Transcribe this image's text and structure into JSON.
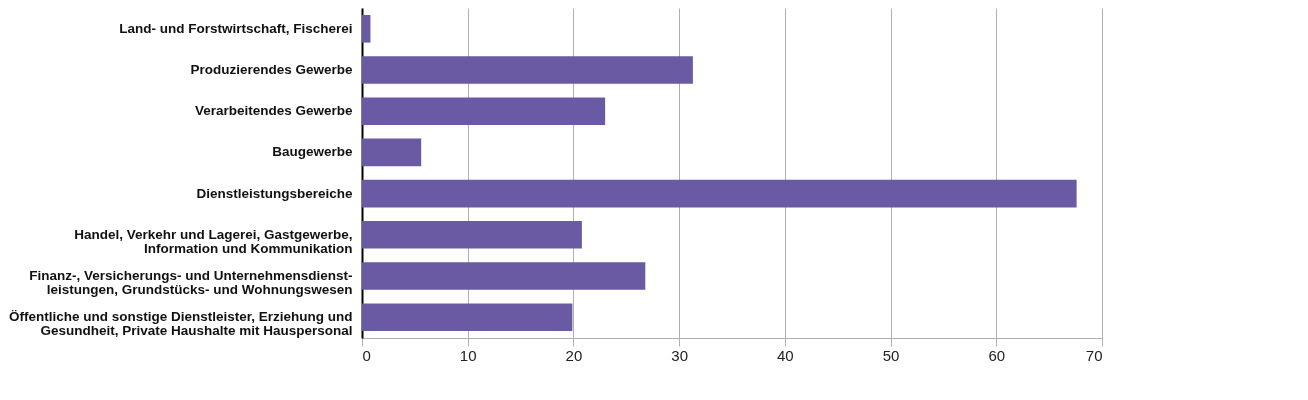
{
  "chart_data": {
    "type": "bar",
    "orientation": "horizontal",
    "categories": [
      "Land- und Forstwirtschaft, Fischerei",
      "Produzierendes Gewerbe",
      "Verarbeitendes Gewerbe",
      "Baugewerbe",
      "Dienstleistungsbereiche",
      "Handel, Verkehr und Lagerei, Gastgewerbe,\nInformation und Kommunikation",
      "Finanz-, Versicherungs- und Unternehmensdienst-\nleistungen, Grundstücks- und Wohnungswesen",
      "Öffentliche und sonstige Dienstleister, Erziehung und\nGesundheit, Private Haushalte mit Hauspersonal"
    ],
    "values": [
      0.8,
      31.3,
      23.0,
      5.6,
      67.6,
      20.8,
      26.8,
      19.9
    ],
    "color": "#6a5aa3",
    "xlim": [
      0,
      70
    ],
    "xticks": [
      0,
      10,
      20,
      30,
      40,
      50,
      60,
      70
    ],
    "grid": "x"
  }
}
